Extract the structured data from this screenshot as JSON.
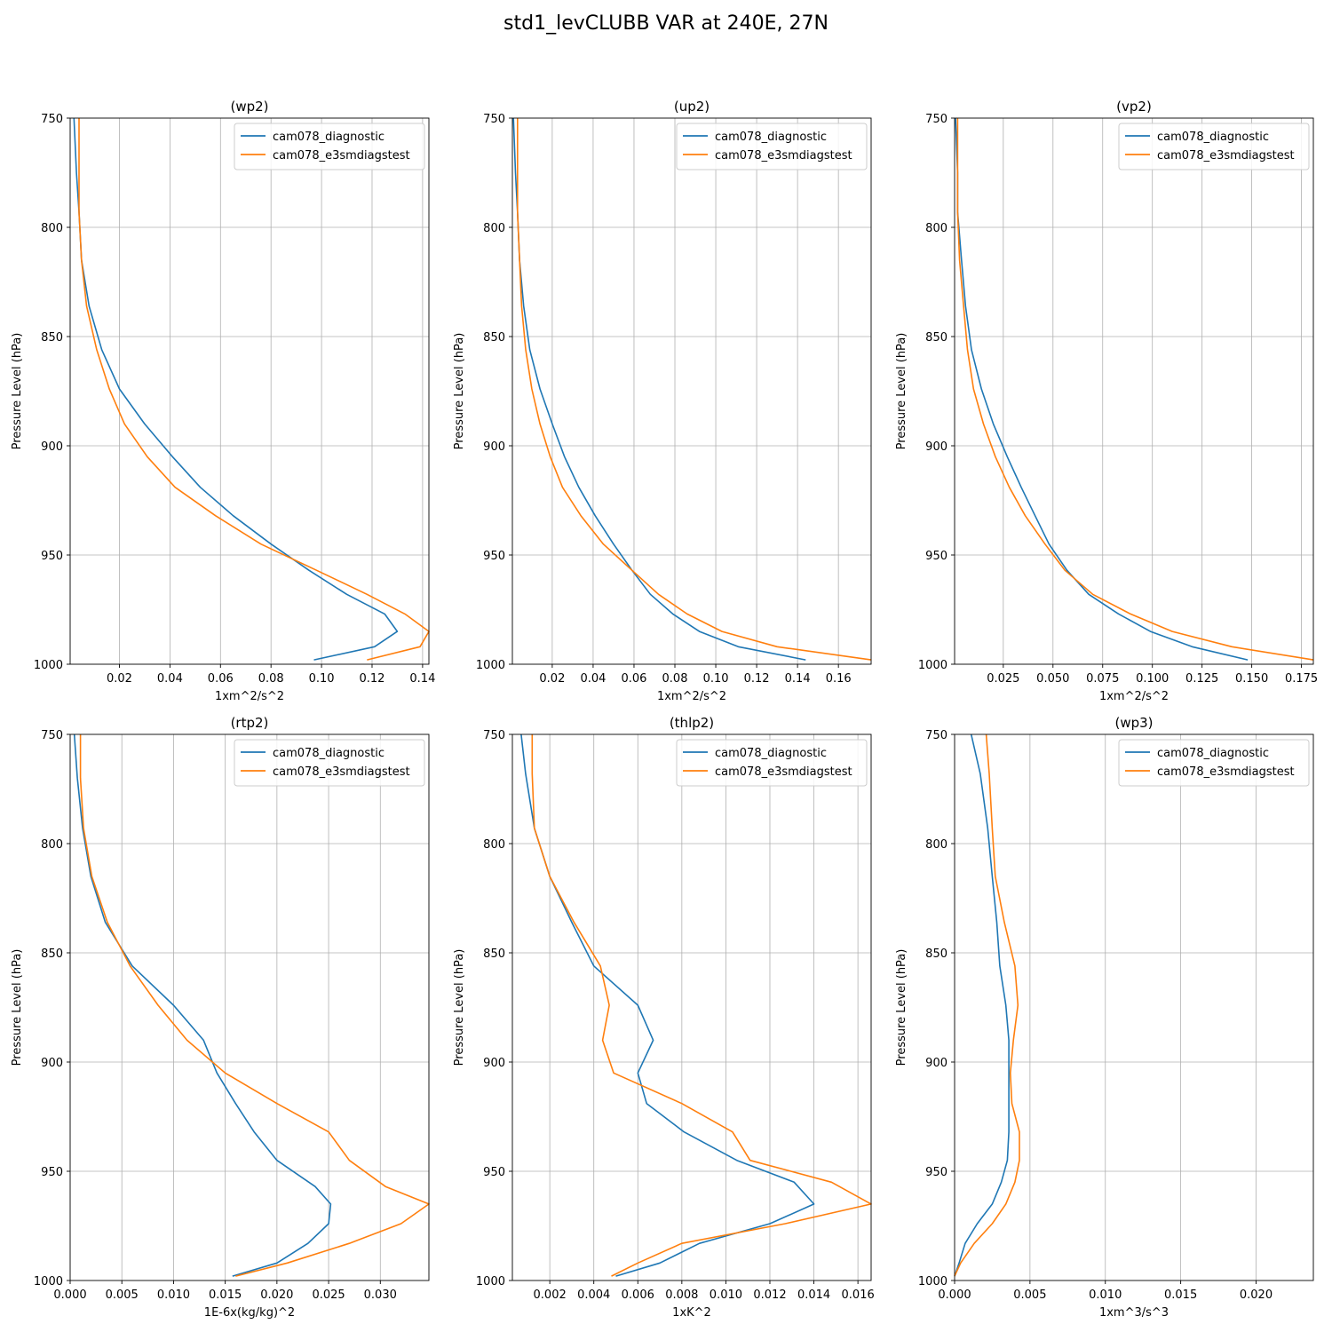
{
  "title": "std1_levCLUBB VAR at 240E, 27N",
  "colors": {
    "diagnostic": "#1f77b4",
    "e3smdiagstest": "#ff7f0e",
    "grid": "#b0b0b0"
  },
  "legend_location": "top-right",
  "chart_data": [
    {
      "type": "line",
      "title": "(wp2)",
      "xlabel": "1xm^2/s^2",
      "ylabel": "Pressure Level (hPa)",
      "xlim": [
        0.0005,
        0.1425
      ],
      "ylim": [
        1000,
        750
      ],
      "grid": true,
      "xticks": [
        0.02,
        0.04,
        0.06,
        0.08,
        0.1,
        0.12,
        0.14
      ],
      "xtick_labels": [
        "0.02",
        "0.04",
        "0.06",
        "0.08",
        "0.10",
        "0.12",
        "0.14"
      ],
      "yticks": [
        750,
        800,
        850,
        900,
        950,
        1000
      ],
      "ytick_labels": [
        "750",
        "800",
        "850",
        "900",
        "950",
        "1000"
      ],
      "series": [
        {
          "name": "cam078_diagnostic",
          "x": [
            0.002,
            0.003,
            0.004,
            0.005,
            0.008,
            0.013,
            0.02,
            0.03,
            0.041,
            0.052,
            0.065,
            0.08,
            0.095,
            0.11,
            0.125,
            0.13,
            0.121,
            0.097
          ],
          "y": [
            750,
            775,
            793,
            815,
            836,
            856,
            874,
            890,
            905,
            919,
            932,
            945,
            957,
            968,
            977,
            985,
            992,
            998
          ]
        },
        {
          "name": "cam078_e3smdiagstest",
          "x": [
            0.004,
            0.004,
            0.004,
            0.005,
            0.007,
            0.011,
            0.016,
            0.022,
            0.031,
            0.042,
            0.058,
            0.076,
            0.098,
            0.118,
            0.133,
            0.1425,
            0.139,
            0.118
          ],
          "y": [
            750,
            775,
            793,
            815,
            836,
            856,
            874,
            890,
            905,
            919,
            932,
            945,
            957,
            968,
            977,
            985,
            992,
            998
          ]
        }
      ]
    },
    {
      "type": "line",
      "title": "(up2)",
      "xlabel": "1xm^2/s^2",
      "ylabel": "Pressure Level (hPa)",
      "xlim": [
        0.0005,
        0.176
      ],
      "ylim": [
        1000,
        750
      ],
      "grid": true,
      "xticks": [
        0.02,
        0.04,
        0.06,
        0.08,
        0.1,
        0.12,
        0.14,
        0.16
      ],
      "xtick_labels": [
        "0.02",
        "0.04",
        "0.06",
        "0.08",
        "0.10",
        "0.12",
        "0.14",
        "0.16"
      ],
      "yticks": [
        750,
        800,
        850,
        900,
        950,
        1000
      ],
      "ytick_labels": [
        "750",
        "800",
        "850",
        "900",
        "950",
        "1000"
      ],
      "series": [
        {
          "name": "cam078_diagnostic",
          "x": [
            0.001,
            0.002,
            0.003,
            0.004,
            0.006,
            0.009,
            0.014,
            0.02,
            0.026,
            0.033,
            0.041,
            0.05,
            0.059,
            0.068,
            0.079,
            0.092,
            0.111,
            0.144
          ],
          "y": [
            750,
            775,
            793,
            815,
            836,
            856,
            874,
            890,
            905,
            919,
            932,
            945,
            957,
            968,
            977,
            985,
            992,
            998
          ]
        },
        {
          "name": "cam078_e3smdiagstest",
          "x": [
            0.003,
            0.003,
            0.003,
            0.004,
            0.005,
            0.007,
            0.01,
            0.014,
            0.019,
            0.025,
            0.034,
            0.045,
            0.059,
            0.072,
            0.086,
            0.103,
            0.13,
            0.176
          ],
          "y": [
            750,
            775,
            793,
            815,
            836,
            856,
            874,
            890,
            905,
            919,
            932,
            945,
            957,
            968,
            977,
            985,
            992,
            998
          ]
        }
      ]
    },
    {
      "type": "line",
      "title": "(vp2)",
      "xlabel": "1xm^2/s^2",
      "ylabel": "Pressure Level (hPa)",
      "xlim": [
        0.0005,
        0.181
      ],
      "ylim": [
        1000,
        750
      ],
      "grid": true,
      "xticks": [
        0.025,
        0.05,
        0.075,
        0.1,
        0.125,
        0.15,
        0.175
      ],
      "xtick_labels": [
        "0.025",
        "0.050",
        "0.075",
        "0.100",
        "0.125",
        "0.150",
        "0.175"
      ],
      "yticks": [
        750,
        800,
        850,
        900,
        950,
        1000
      ],
      "ytick_labels": [
        "750",
        "800",
        "850",
        "900",
        "950",
        "1000"
      ],
      "series": [
        {
          "name": "cam078_diagnostic",
          "x": [
            0.001,
            0.002,
            0.002,
            0.004,
            0.006,
            0.009,
            0.014,
            0.02,
            0.027,
            0.034,
            0.041,
            0.048,
            0.057,
            0.068,
            0.083,
            0.099,
            0.12,
            0.148
          ],
          "y": [
            750,
            775,
            793,
            815,
            836,
            856,
            874,
            890,
            905,
            919,
            932,
            945,
            957,
            968,
            977,
            985,
            992,
            998
          ]
        },
        {
          "name": "cam078_e3smdiagstest",
          "x": [
            0.002,
            0.002,
            0.002,
            0.003,
            0.005,
            0.007,
            0.01,
            0.015,
            0.021,
            0.028,
            0.036,
            0.046,
            0.056,
            0.07,
            0.089,
            0.11,
            0.14,
            0.181
          ],
          "y": [
            750,
            775,
            793,
            815,
            836,
            856,
            874,
            890,
            905,
            919,
            932,
            945,
            957,
            968,
            977,
            985,
            992,
            998
          ]
        }
      ]
    },
    {
      "type": "line",
      "title": "(rtp2)",
      "xlabel": "1E-6x(kg/kg)^2",
      "ylabel": "Pressure Level (hPa)",
      "xlim": [
        0.0,
        0.0347
      ],
      "ylim": [
        1000,
        750
      ],
      "grid": true,
      "xticks": [
        0.0,
        0.005,
        0.01,
        0.015,
        0.02,
        0.025,
        0.03
      ],
      "xtick_labels": [
        "0.000",
        "0.005",
        "0.010",
        "0.015",
        "0.020",
        "0.025",
        "0.030"
      ],
      "yticks": [
        750,
        800,
        850,
        900,
        950,
        1000
      ],
      "ytick_labels": [
        "750",
        "800",
        "850",
        "900",
        "950",
        "1000"
      ],
      "series": [
        {
          "name": "cam078_diagnostic",
          "x": [
            0.0004,
            0.0007,
            0.0012,
            0.002,
            0.0034,
            0.006,
            0.01,
            0.0129,
            0.0142,
            0.016,
            0.0178,
            0.02,
            0.0237,
            0.0252,
            0.025,
            0.023,
            0.02,
            0.0157
          ],
          "y": [
            750,
            770,
            793,
            815,
            836,
            856,
            874,
            890,
            905,
            919,
            932,
            945,
            957,
            965,
            974,
            983,
            992,
            998
          ]
        },
        {
          "name": "cam078_e3smdiagstest",
          "x": [
            0.001,
            0.001,
            0.0013,
            0.0021,
            0.0036,
            0.0058,
            0.0085,
            0.0113,
            0.015,
            0.02,
            0.025,
            0.027,
            0.0305,
            0.0347,
            0.032,
            0.027,
            0.021,
            0.016
          ],
          "y": [
            750,
            770,
            793,
            815,
            836,
            856,
            874,
            890,
            905,
            919,
            932,
            945,
            957,
            965,
            974,
            983,
            992,
            998
          ]
        }
      ]
    },
    {
      "type": "line",
      "title": "(thlp2)",
      "xlabel": "1xK^2",
      "ylabel": "Pressure Level (hPa)",
      "xlim": [
        0.0003,
        0.0166
      ],
      "ylim": [
        1000,
        750
      ],
      "grid": true,
      "xticks": [
        0.002,
        0.004,
        0.006,
        0.008,
        0.01,
        0.012,
        0.014,
        0.016
      ],
      "xtick_labels": [
        "0.002",
        "0.004",
        "0.006",
        "0.008",
        "0.010",
        "0.012",
        "0.014",
        "0.016"
      ],
      "yticks": [
        750,
        800,
        850,
        900,
        950,
        1000
      ],
      "ytick_labels": [
        "750",
        "800",
        "850",
        "900",
        "950",
        "1000"
      ],
      "series": [
        {
          "name": "cam078_diagnostic",
          "x": [
            0.0007,
            0.0009,
            0.0013,
            0.002,
            0.003,
            0.004,
            0.006,
            0.0067,
            0.006,
            0.0064,
            0.0081,
            0.0105,
            0.0131,
            0.014,
            0.012,
            0.0088,
            0.007,
            0.005
          ],
          "y": [
            750,
            768,
            793,
            815,
            836,
            856,
            874,
            890,
            905,
            919,
            932,
            945,
            955,
            965,
            974,
            983,
            992,
            998
          ]
        },
        {
          "name": "cam078_e3smdiagstest",
          "x": [
            0.0012,
            0.0012,
            0.0013,
            0.002,
            0.0031,
            0.0043,
            0.0047,
            0.0044,
            0.0049,
            0.008,
            0.0103,
            0.0111,
            0.0148,
            0.0166,
            0.0127,
            0.008,
            0.006,
            0.0048
          ],
          "y": [
            750,
            768,
            793,
            815,
            836,
            856,
            874,
            890,
            905,
            919,
            932,
            945,
            955,
            965,
            974,
            983,
            992,
            998
          ]
        }
      ]
    },
    {
      "type": "line",
      "title": "(wp3)",
      "xlabel": "1xm^3/s^3",
      "ylabel": "Pressure Level (hPa)",
      "xlim": [
        0.0,
        0.0238
      ],
      "ylim": [
        1000,
        750
      ],
      "grid": true,
      "xticks": [
        0.0,
        0.005,
        0.01,
        0.015,
        0.02
      ],
      "xtick_labels": [
        "0.000",
        "0.005",
        "0.010",
        "0.015",
        "0.020"
      ],
      "yticks": [
        750,
        800,
        850,
        900,
        950,
        1000
      ],
      "ytick_labels": [
        "750",
        "800",
        "850",
        "900",
        "950",
        "1000"
      ],
      "series": [
        {
          "name": "cam078_diagnostic",
          "x": [
            0.0011,
            0.0017,
            0.0022,
            0.0025,
            0.0028,
            0.003,
            0.0034,
            0.0036,
            0.0036,
            0.0036,
            0.0036,
            0.0035,
            0.0031,
            0.0025,
            0.0015,
            0.0007,
            0.0003,
            0.0
          ],
          "y": [
            750,
            768,
            793,
            815,
            836,
            856,
            874,
            890,
            905,
            919,
            932,
            945,
            955,
            965,
            974,
            983,
            992,
            998
          ]
        },
        {
          "name": "cam078_e3smdiagstest",
          "x": [
            0.0021,
            0.0023,
            0.0025,
            0.0027,
            0.0033,
            0.004,
            0.0042,
            0.0039,
            0.0037,
            0.0038,
            0.0043,
            0.0043,
            0.004,
            0.0034,
            0.0025,
            0.0013,
            0.0004,
            0.0
          ],
          "y": [
            750,
            768,
            793,
            815,
            836,
            856,
            874,
            890,
            905,
            919,
            932,
            945,
            955,
            965,
            974,
            983,
            992,
            998
          ]
        }
      ]
    }
  ]
}
